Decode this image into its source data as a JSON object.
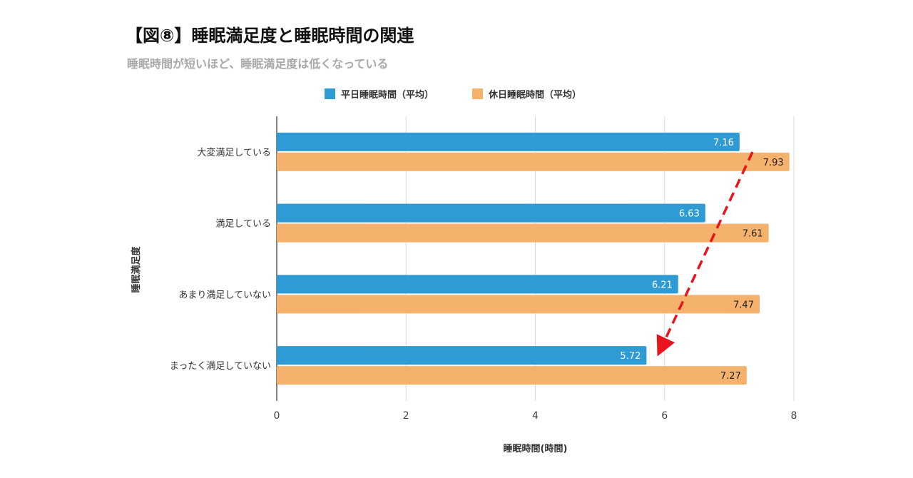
{
  "title": "【図⑧】睡眠満足度と睡眠時間の関連",
  "subtitle": "睡眠時間が短いほど、睡眠満足度は低くなっている",
  "colors": {
    "weekday": "#2f9bd5",
    "holiday": "#f4b26c",
    "arrow": "#e8141e",
    "grid": "#d9d9d9",
    "axis": "#333333"
  },
  "chart_data": {
    "type": "bar",
    "orientation": "horizontal",
    "categories": [
      "大変満足している",
      "満足している",
      "あまり満足していない",
      "まったく満足していない"
    ],
    "series": [
      {
        "name": "平日睡眠時間（平均）",
        "values": [
          7.16,
          6.63,
          6.21,
          5.72
        ]
      },
      {
        "name": "休日睡眠時間（平均）",
        "values": [
          7.93,
          7.61,
          7.47,
          7.27
        ]
      }
    ],
    "xlabel": "睡眠時間(時間)",
    "ylabel": "睡眠満足度",
    "xlim": [
      0,
      8
    ],
    "xticks": [
      "0",
      "2",
      "4",
      "6",
      "8"
    ],
    "grid": true,
    "legend_position": "top",
    "annotation": "red dashed arrow indicating decreasing trend"
  }
}
